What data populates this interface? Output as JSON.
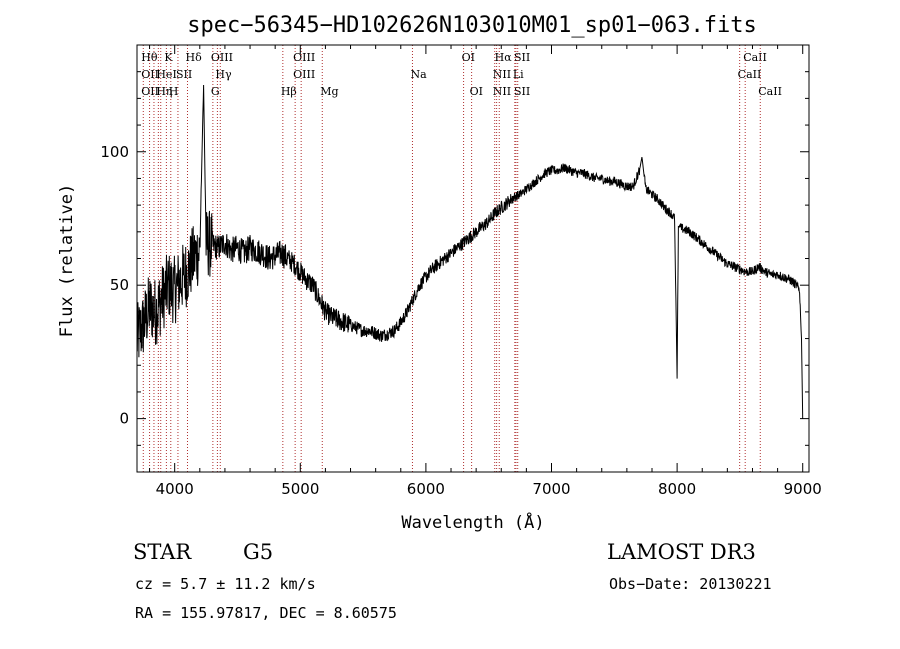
{
  "chart_data": {
    "type": "line",
    "title": "spec−56345−HD102626N103010M01_sp01−063.fits",
    "xlabel": "Wavelength (Å)",
    "ylabel": "Flux (relative)",
    "xlim": [
      3700,
      9050
    ],
    "ylim": [
      -20,
      140
    ],
    "xticks": [
      4000,
      5000,
      6000,
      7000,
      8000,
      9000
    ],
    "yticks": [
      0,
      50,
      100
    ],
    "colors": {
      "spectrum": "#000000",
      "line_marker": "#b03030",
      "frame": "#000000"
    },
    "series": [
      {
        "name": "spectrum",
        "x": [
          3700,
          3750,
          3800,
          3850,
          3900,
          3950,
          4000,
          4050,
          4100,
          4150,
          4200,
          4230,
          4250,
          4300,
          4350,
          4400,
          4450,
          4500,
          4550,
          4600,
          4650,
          4700,
          4750,
          4800,
          4850,
          4900,
          4950,
          5000,
          5050,
          5100,
          5150,
          5200,
          5250,
          5300,
          5350,
          5400,
          5450,
          5500,
          5550,
          5600,
          5650,
          5700,
          5750,
          5800,
          5850,
          5900,
          5950,
          6000,
          6050,
          6100,
          6150,
          6200,
          6250,
          6300,
          6350,
          6400,
          6450,
          6500,
          6550,
          6600,
          6650,
          6700,
          6750,
          6800,
          6850,
          6900,
          6950,
          7000,
          7050,
          7100,
          7150,
          7200,
          7250,
          7300,
          7350,
          7400,
          7450,
          7500,
          7550,
          7600,
          7650,
          7700,
          7720,
          7750,
          7800,
          7850,
          7900,
          7950,
          7980,
          7990,
          8000,
          8010,
          8050,
          8100,
          8150,
          8200,
          8250,
          8300,
          8350,
          8400,
          8450,
          8500,
          8550,
          8600,
          8650,
          8700,
          8750,
          8800,
          8850,
          8900,
          8950,
          8975,
          8990,
          9000
        ],
        "y": [
          30,
          35,
          42,
          40,
          45,
          50,
          48,
          52,
          55,
          60,
          63,
          125,
          66,
          65,
          64,
          66,
          63,
          64,
          62,
          64,
          63,
          62,
          60,
          61,
          62,
          60,
          58,
          55,
          52,
          50,
          45,
          40,
          38,
          37,
          36,
          35,
          34,
          33,
          33,
          32,
          31,
          32,
          33,
          36,
          40,
          45,
          50,
          53,
          56,
          58,
          60,
          62,
          64,
          66,
          68,
          70,
          72,
          74,
          77,
          79,
          81,
          83,
          84,
          86,
          88,
          90,
          92,
          93,
          93,
          94,
          93,
          92,
          92,
          91,
          90,
          90,
          89,
          89,
          88,
          87,
          87,
          93,
          98,
          86,
          84,
          82,
          79,
          77,
          75,
          45,
          15,
          72,
          71,
          70,
          68,
          66,
          64,
          62,
          60,
          58,
          57,
          56,
          55,
          55,
          57,
          55,
          54,
          54,
          53,
          52,
          50,
          48,
          30,
          0
        ]
      }
    ],
    "line_markers": [
      {
        "wl": 3750,
        "labels": [
          {
            "t": "Hθ",
            "r": 0
          },
          {
            "t": "OII",
            "r": 1
          },
          {
            "t": "OII",
            "r": 2
          }
        ]
      },
      {
        "wl": 3800,
        "labels": []
      },
      {
        "wl": 3835,
        "labels": []
      },
      {
        "wl": 3870,
        "labels": [
          {
            "t": "HeI",
            "r": 1
          },
          {
            "t": "Hη",
            "r": 2
          }
        ]
      },
      {
        "wl": 3889,
        "labels": []
      },
      {
        "wl": 3934,
        "labels": [
          {
            "t": "K",
            "r": 0
          }
        ]
      },
      {
        "wl": 3969,
        "labels": [
          {
            "t": "H",
            "r": 2
          }
        ]
      },
      {
        "wl": 4026,
        "labels": [
          {
            "t": "SII",
            "r": 1
          }
        ]
      },
      {
        "wl": 4102,
        "labels": [
          {
            "t": "Hδ",
            "r": 0
          }
        ]
      },
      {
        "wl": 4304,
        "labels": [
          {
            "t": "OIII",
            "r": 0
          },
          {
            "t": "G",
            "r": 2
          }
        ]
      },
      {
        "wl": 4340,
        "labels": [
          {
            "t": "Hγ",
            "r": 1
          }
        ]
      },
      {
        "wl": 4363,
        "labels": []
      },
      {
        "wl": 4861,
        "labels": [
          {
            "t": "Hβ",
            "r": 2
          }
        ]
      },
      {
        "wl": 4959,
        "labels": [
          {
            "t": "OIII",
            "r": 0
          },
          {
            "t": "OIII",
            "r": 1
          }
        ]
      },
      {
        "wl": 5007,
        "labels": []
      },
      {
        "wl": 5175,
        "labels": [
          {
            "t": "Mg",
            "r": 2
          }
        ]
      },
      {
        "wl": 5893,
        "labels": [
          {
            "t": "Na",
            "r": 1
          }
        ]
      },
      {
        "wl": 6300,
        "labels": [
          {
            "t": "OI",
            "r": 0
          }
        ]
      },
      {
        "wl": 6364,
        "labels": [
          {
            "t": "OI",
            "r": 2
          }
        ]
      },
      {
        "wl": 6548,
        "labels": [
          {
            "t": "NII",
            "r": 1
          },
          {
            "t": "NII",
            "r": 2
          }
        ]
      },
      {
        "wl": 6563,
        "labels": [
          {
            "t": "Hα",
            "r": 0
          }
        ]
      },
      {
        "wl": 6584,
        "labels": []
      },
      {
        "wl": 6708,
        "labels": [
          {
            "t": "Li",
            "r": 1
          }
        ]
      },
      {
        "wl": 6717,
        "labels": [
          {
            "t": "SII",
            "r": 0
          },
          {
            "t": "SII",
            "r": 2
          }
        ]
      },
      {
        "wl": 6731,
        "labels": []
      },
      {
        "wl": 8498,
        "labels": [
          {
            "t": "CaII",
            "r": 1
          }
        ]
      },
      {
        "wl": 8542,
        "labels": [
          {
            "t": "CaII",
            "r": 0
          }
        ]
      },
      {
        "wl": 8662,
        "labels": [
          {
            "t": "CaII",
            "r": 2
          }
        ]
      }
    ]
  },
  "info": {
    "object_class": "STAR",
    "subclass": "G5",
    "survey": "LAMOST DR3",
    "cz": "cz = 5.7 ± 11.2 km/s",
    "obs_date": "Obs−Date: 20130221",
    "coords": "RA = 155.97817, DEC =   8.60575"
  }
}
